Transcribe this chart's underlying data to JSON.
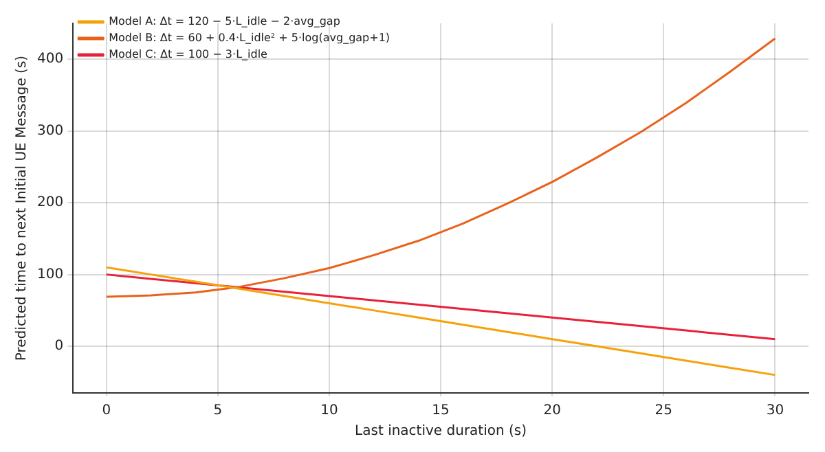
{
  "chart_data": {
    "type": "line",
    "xlabel": "Last inactive duration (s)",
    "ylabel": "Predicted time to next Initial UE Message (s)",
    "x": [
      0,
      2,
      4,
      6,
      8,
      10,
      12,
      14,
      16,
      18,
      20,
      22,
      24,
      26,
      28,
      30
    ],
    "series": [
      {
        "name": "Model A: Δt = 120 − 5·L_idle − 2·avg_gap",
        "color": "#f5a20a",
        "values": [
          110,
          100,
          90,
          80,
          70,
          60,
          50,
          40,
          30,
          20,
          10,
          0,
          -10,
          -20,
          -30,
          -40
        ]
      },
      {
        "name": "Model B: Δt = 60 + 0.4·L_idle² + 5·log(avg_gap+1)",
        "color": "#e8621c",
        "values": [
          69,
          71,
          75,
          83,
          95,
          109,
          127,
          147,
          171,
          199,
          229,
          263,
          299,
          339,
          383,
          429
        ]
      },
      {
        "name": "Model C: Δt = 100 − 3·L_idle",
        "color": "#e8213a",
        "values": [
          100,
          94,
          88,
          82,
          76,
          70,
          64,
          58,
          52,
          46,
          40,
          34,
          28,
          22,
          16,
          10
        ]
      }
    ],
    "xlim": [
      -1.5,
      31.5
    ],
    "xticks": [
      0,
      5,
      10,
      15,
      20,
      25,
      30
    ],
    "ylim": [
      -65,
      450
    ],
    "yticks": [
      0,
      100,
      200,
      300,
      400
    ],
    "grid": true,
    "legend": "top left",
    "marker": "none",
    "line_style": "solid"
  }
}
